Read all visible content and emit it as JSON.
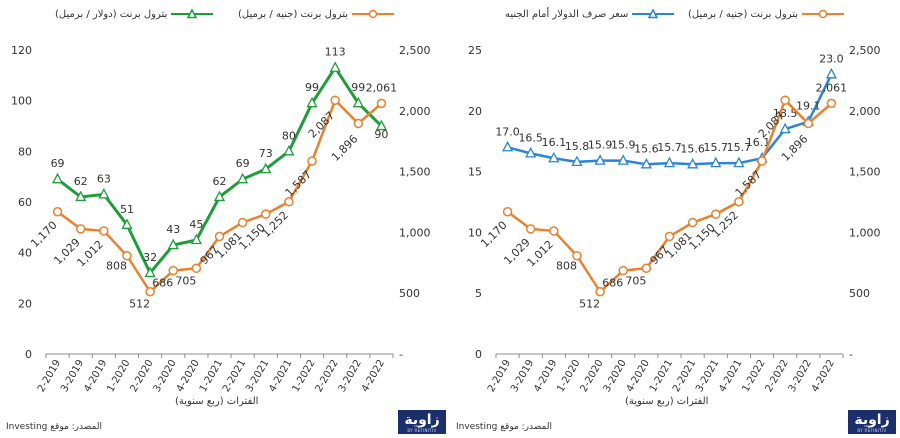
{
  "colors": {
    "green": "#1e9e3a",
    "orange": "#e9812d",
    "blue": "#2a84d8",
    "grid": "#d9d9d9",
    "axis": "#8c8c8c",
    "text": "#333333"
  },
  "source_text": "المصدر: موقع Investing",
  "logo_text": "زاوية",
  "logo_sub": "BY REFINITIV",
  "chart_data": [
    {
      "type": "line",
      "title": "",
      "xlabel": "الفترات (ربع سنوية)",
      "categories": [
        "2-2019",
        "3-2019",
        "4-2019",
        "1-2020",
        "2-2020",
        "3-2020",
        "4-2020",
        "1-2021",
        "2-2021",
        "3-2021",
        "4-2021",
        "1-2022",
        "2-2022",
        "3-2022",
        "4-2022"
      ],
      "legend": [
        "بترول برنت (جنيه / برميل)",
        "بترول برنت (دولار / برميل)"
      ],
      "series": [
        {
          "name": "بترول برنت (دولار / برميل)",
          "axis": "left",
          "color": "#1e9e3a",
          "marker": "triangle",
          "values": [
            69,
            62,
            63,
            51,
            32,
            43,
            45,
            62,
            69,
            73,
            80,
            99,
            113,
            99,
            90
          ],
          "labels": [
            "69",
            "62",
            "63",
            "51",
            "32",
            "43",
            "45",
            "62",
            "69",
            "73",
            "80",
            "99",
            "113",
            "99",
            "90"
          ]
        },
        {
          "name": "بترول برنت (جنيه / برميل)",
          "axis": "right",
          "color": "#e9812d",
          "marker": "circle",
          "values": [
            1170,
            1029,
            1012,
            808,
            512,
            686,
            705,
            967,
            1081,
            1150,
            1252,
            1587,
            2087,
            1896,
            2061
          ],
          "labels": [
            "1,170",
            "1,029",
            "1,012",
            "808",
            "512",
            "686",
            "705",
            "967",
            "1,081",
            "1,150",
            "1,252",
            "1,587",
            "2,087",
            "1,896",
            "2,061"
          ]
        }
      ],
      "y_left": {
        "min": 0,
        "max": 120,
        "ticks": [
          "0",
          "20",
          "40",
          "60",
          "80",
          "100",
          "120"
        ]
      },
      "y_right": {
        "min": 0,
        "max": 2500,
        "ticks": [
          "-",
          "500",
          "1,000",
          "1,500",
          "2,000",
          "2,500"
        ]
      }
    },
    {
      "type": "line",
      "title": "",
      "xlabel": "الفترات (ربع سنوية)",
      "categories": [
        "2-2019",
        "3-2019",
        "4-2019",
        "1-2020",
        "2-2020",
        "3-2020",
        "4-2020",
        "1-2021",
        "2-2021",
        "3-2021",
        "4-2021",
        "1-2022",
        "2-2022",
        "3-2022",
        "4-2022"
      ],
      "legend": [
        "بترول برنت (جنيه / برميل)",
        "سعر صرف الدولار أمام الجنيه"
      ],
      "series": [
        {
          "name": "سعر صرف الدولار أمام الجنيه",
          "axis": "left",
          "color": "#2a84d8",
          "marker": "triangle",
          "values": [
            17.0,
            16.5,
            16.1,
            15.8,
            15.9,
            15.9,
            15.6,
            15.7,
            15.6,
            15.7,
            15.7,
            16.1,
            18.5,
            19.1,
            23.0
          ],
          "labels": [
            "17.0",
            "16.5",
            "16.1",
            "15.8",
            "15.9",
            "15.9",
            "15.6",
            "15.7",
            "15.6",
            "15.7",
            "15.7",
            "16.1",
            "18.5",
            "19.1",
            "23.0"
          ]
        },
        {
          "name": "بترول برنت (جنيه / برميل)",
          "axis": "right",
          "color": "#e9812d",
          "marker": "circle",
          "values": [
            1170,
            1029,
            1012,
            808,
            512,
            686,
            705,
            967,
            1081,
            1150,
            1252,
            1587,
            2087,
            1896,
            2061
          ],
          "labels": [
            "1,170",
            "1,029",
            "1,012",
            "808",
            "512",
            "686",
            "705",
            "967",
            "1,081",
            "1,150",
            "1,252",
            "1,587",
            "2,087",
            "1,896",
            "2,061"
          ]
        }
      ],
      "y_left": {
        "min": 0,
        "max": 25,
        "ticks": [
          "0",
          "5",
          "10",
          "15",
          "20",
          "25"
        ]
      },
      "y_right": {
        "min": 0,
        "max": 2500,
        "ticks": [
          "-",
          "500",
          "1,000",
          "1,500",
          "2,000",
          "2,500"
        ]
      }
    }
  ]
}
